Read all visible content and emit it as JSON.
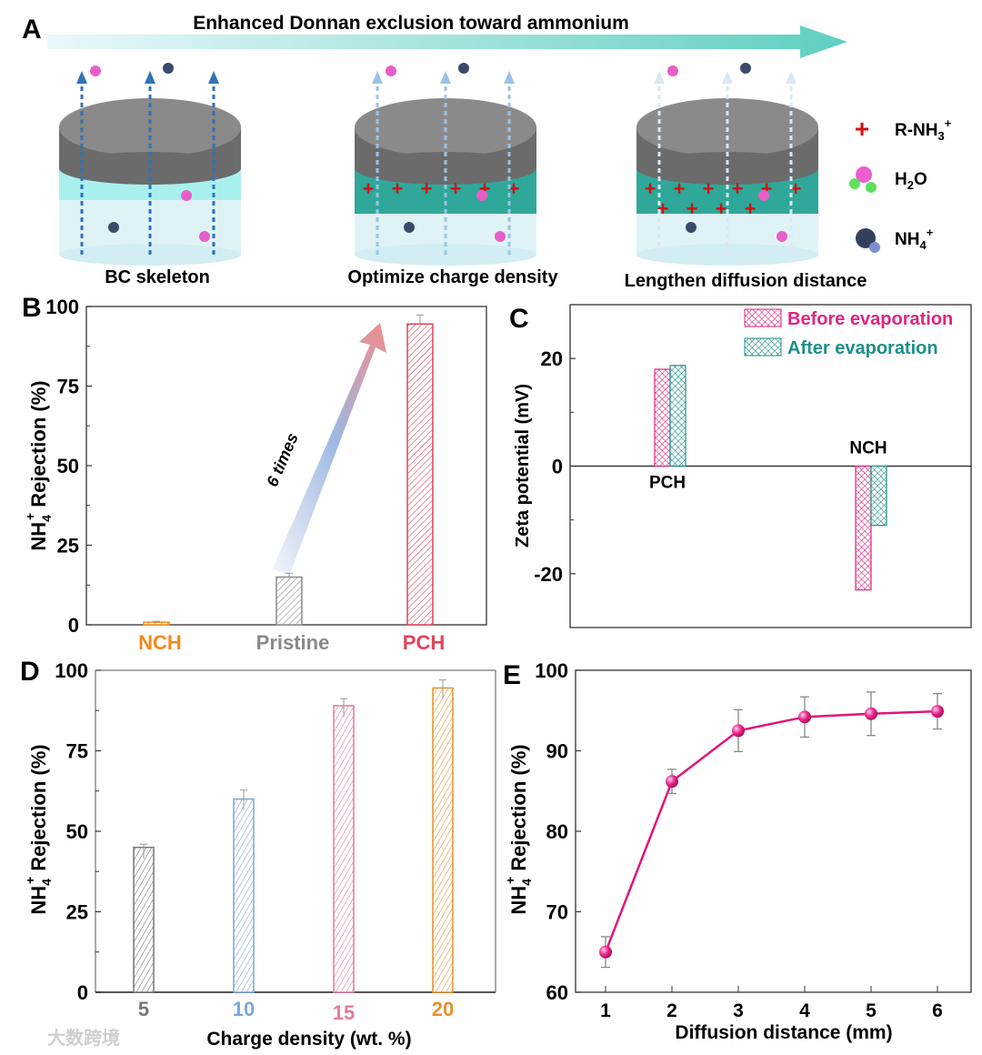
{
  "panel_a": {
    "letter": "A",
    "title": "Enhanced  Donnan  exclusion  toward  ammonium",
    "stages": [
      "BC skeleton",
      "Optimize charge density",
      "Lengthen diffusion distance"
    ],
    "legend": [
      {
        "icon": "plus-icon",
        "label": "R-NH",
        "sub": "3",
        "sup": "+"
      },
      {
        "icon": "water-molecule-icon",
        "label": "H",
        "sub": "2",
        "tail": "O"
      },
      {
        "icon": "ammonium-ion-icon",
        "label": "NH",
        "sub": "4",
        "sup": "+"
      }
    ]
  },
  "watermark": "大数跨境",
  "chart_data": [
    {
      "panel": "B",
      "type": "bar",
      "title": "",
      "xlabel": "",
      "ylabel": "NH4+ Rejection (%)",
      "ylabel_parts": {
        "main": "NH",
        "sub": "4",
        "sup": "+",
        "rest": " Rejection (%)"
      },
      "ylim": [
        0,
        100
      ],
      "yticks": [
        0,
        25,
        50,
        75,
        100
      ],
      "categories": [
        "NCH",
        "Pristine",
        "PCH"
      ],
      "values": [
        0.8,
        15,
        94.5
      ],
      "errors": [
        0.3,
        1.2,
        2.8
      ],
      "colors": [
        "#f08a1c",
        "#8a8a8a",
        "#e0435a"
      ],
      "annotation": "6 times"
    },
    {
      "panel": "C",
      "type": "bar",
      "title": "",
      "xlabel": "",
      "ylabel": "Zeta potential (mV)",
      "ylim": [
        -30,
        30
      ],
      "yticks": [
        -20,
        0,
        20
      ],
      "categories": [
        "PCH",
        "NCH"
      ],
      "series": [
        {
          "name": "Before evaporation",
          "values": [
            18,
            -23
          ],
          "color": "#e0257f"
        },
        {
          "name": "After evaporation",
          "values": [
            18.7,
            -11
          ],
          "color": "#1e9088"
        }
      ],
      "legend": "top-right"
    },
    {
      "panel": "D",
      "type": "bar",
      "title": "",
      "xlabel": "Charge density  (wt. %)",
      "ylabel": "NH4+ Rejection (%)",
      "ylabel_parts": {
        "main": "NH",
        "sub": "4",
        "sup": "+",
        "rest": " Rejection (%)"
      },
      "ylim": [
        0,
        100
      ],
      "yticks": [
        0,
        25,
        50,
        75,
        100
      ],
      "categories": [
        "5",
        "10",
        "15",
        "20"
      ],
      "values": [
        45,
        60,
        89,
        94.5
      ],
      "errors": [
        1,
        2.8,
        2.2,
        2.5
      ],
      "colors": [
        "#777777",
        "#7aa7dc",
        "#e8799b",
        "#e8912a"
      ]
    },
    {
      "panel": "E",
      "type": "line",
      "title": "",
      "xlabel": "Diffusion distance (mm)",
      "ylabel": "NH4+ Rejection (%)",
      "ylabel_parts": {
        "main": "NH",
        "sub": "4",
        "sup": "+",
        "rest": " Rejection (%)"
      },
      "xlim": [
        0.5,
        6.5
      ],
      "ylim": [
        60,
        100
      ],
      "xticks": [
        1,
        2,
        3,
        4,
        5,
        6
      ],
      "yticks": [
        60,
        70,
        80,
        90,
        100
      ],
      "x": [
        1,
        2,
        3,
        4,
        5,
        6
      ],
      "y": [
        65,
        86.2,
        92.5,
        94.2,
        94.6,
        94.9
      ],
      "errors": [
        1.9,
        1.5,
        2.6,
        2.5,
        2.7,
        2.2
      ],
      "color": "#e0147a"
    }
  ]
}
